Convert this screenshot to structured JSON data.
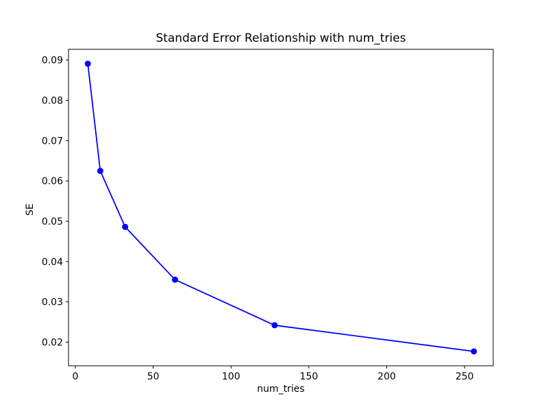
{
  "figure": {
    "background": "#ffffff",
    "spine_color": "#000000"
  },
  "chart_data": {
    "type": "line",
    "title": "Standard Error Relationship with num_tries",
    "xlabel": "num_tries",
    "ylabel": "SE",
    "series": [
      {
        "name": "SE",
        "x": [
          8,
          16,
          32,
          64,
          128,
          256
        ],
        "y": [
          0.0891,
          0.0625,
          0.0486,
          0.0355,
          0.0242,
          0.0177
        ],
        "line_color": "#0000ff",
        "marker": "circle",
        "marker_color": "#0000ff"
      }
    ],
    "xlim": [
      -4.4,
      268.4
    ],
    "ylim": [
      0.01413,
      0.09267
    ],
    "xticks": [
      0,
      50,
      100,
      150,
      200,
      250
    ],
    "xtick_labels": [
      "0",
      "50",
      "100",
      "150",
      "200",
      "250"
    ],
    "yticks": [
      0.02,
      0.03,
      0.04,
      0.05,
      0.06,
      0.07,
      0.08,
      0.09
    ],
    "ytick_labels": [
      "0.02",
      "0.03",
      "0.04",
      "0.05",
      "0.06",
      "0.07",
      "0.08",
      "0.09"
    ],
    "grid": false,
    "legend_position": "none"
  }
}
